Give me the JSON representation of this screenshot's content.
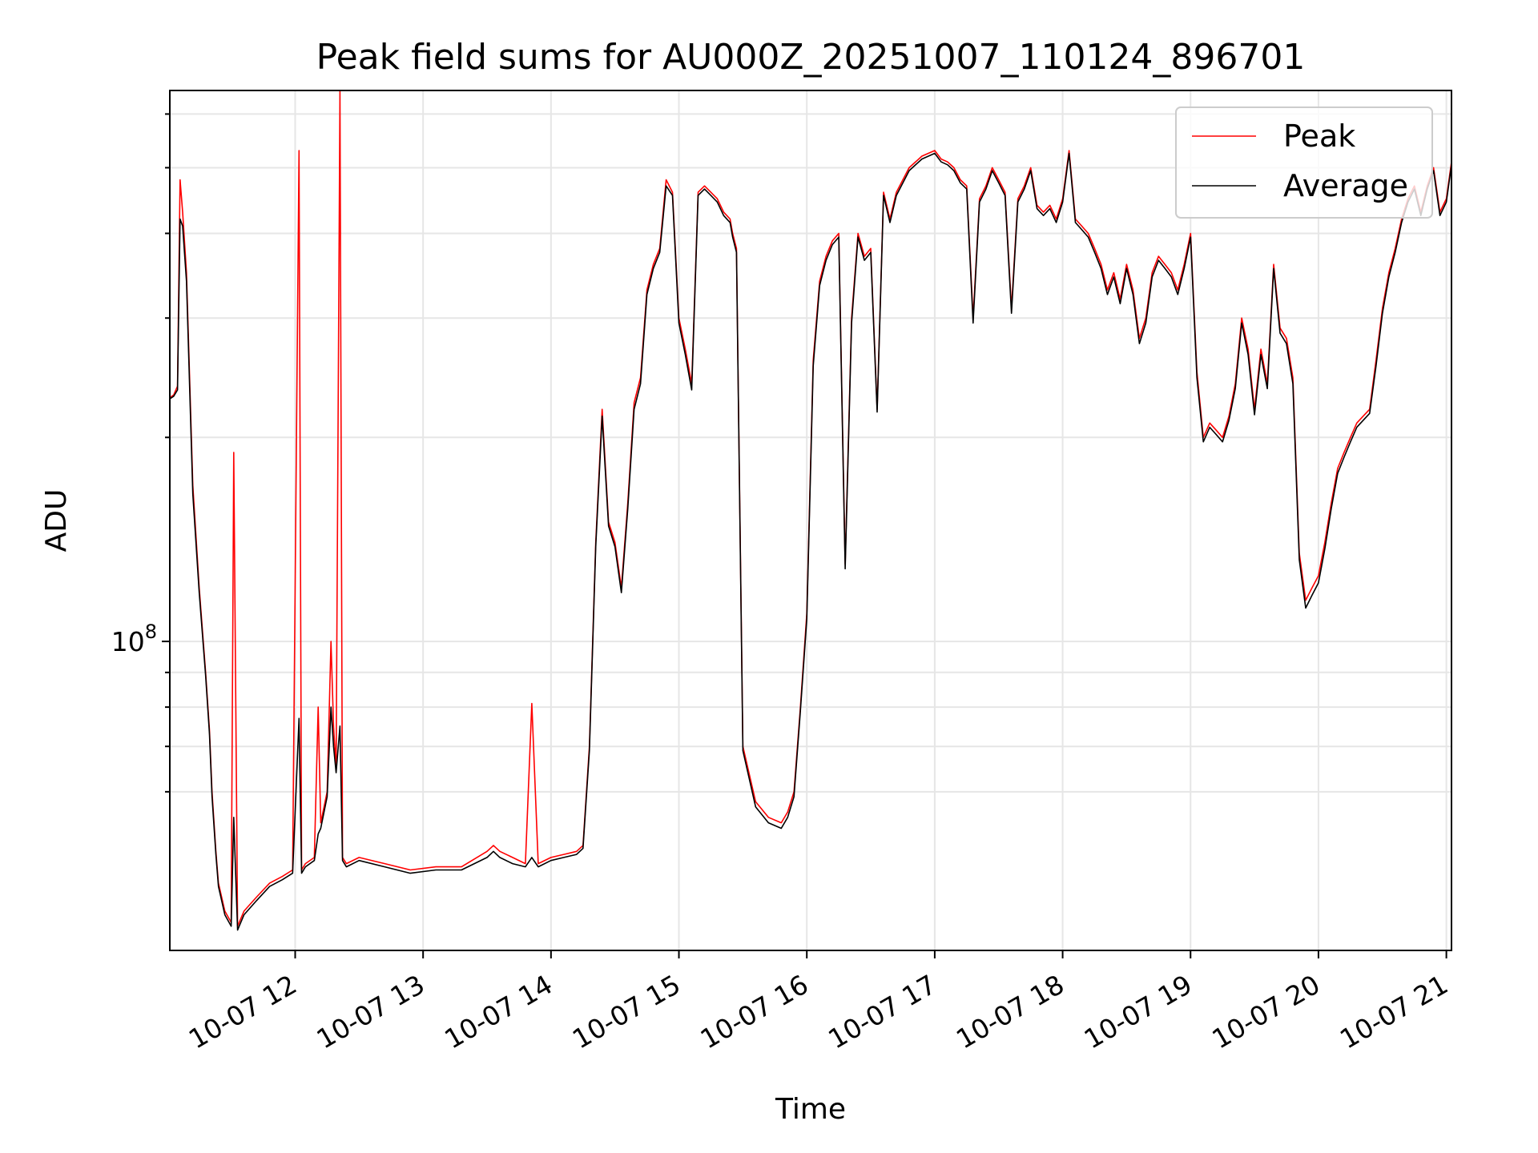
{
  "chart_data": {
    "type": "line",
    "title": "Peak field sums for AU000Z_20251007_110124_896701",
    "xlabel": "Time",
    "ylabel": "ADU",
    "xlim_hours": [
      11.02,
      21.04
    ],
    "ylim": [
      35000000,
      650000000
    ],
    "yscale": "log",
    "grid": true,
    "legend_position": "top-right",
    "x_major_ticks": [
      {
        "x": 12,
        "label": "10-07 12"
      },
      {
        "x": 13,
        "label": "10-07 13"
      },
      {
        "x": 14,
        "label": "10-07 14"
      },
      {
        "x": 15,
        "label": "10-07 15"
      },
      {
        "x": 16,
        "label": "10-07 16"
      },
      {
        "x": 17,
        "label": "10-07 17"
      },
      {
        "x": 18,
        "label": "10-07 18"
      },
      {
        "x": 19,
        "label": "10-07 19"
      },
      {
        "x": 20,
        "label": "10-07 20"
      },
      {
        "x": 21,
        "label": "10-07 21"
      }
    ],
    "y_major_ticks": [
      {
        "y": 100000000,
        "base": "10",
        "exp": "8"
      }
    ],
    "y_minor_ticks": [
      60000000,
      70000000,
      80000000,
      90000000,
      200000000,
      300000000,
      400000000,
      500000000,
      600000000
    ],
    "series": [
      {
        "name": "Peak",
        "color": "#ff0000",
        "x": [
          11.02,
          11.05,
          11.08,
          11.1,
          11.12,
          11.15,
          11.2,
          11.25,
          11.3,
          11.33,
          11.35,
          11.38,
          11.4,
          11.45,
          11.5,
          11.52,
          11.55,
          11.6,
          11.7,
          11.8,
          11.9,
          11.98,
          12.03,
          12.05,
          12.08,
          12.15,
          12.18,
          12.2,
          12.25,
          12.28,
          12.3,
          12.32,
          12.35,
          12.37,
          12.4,
          12.5,
          12.7,
          12.9,
          13.1,
          13.3,
          13.5,
          13.55,
          13.6,
          13.7,
          13.8,
          13.85,
          13.9,
          14.0,
          14.1,
          14.2,
          14.25,
          14.3,
          14.35,
          14.4,
          14.45,
          14.5,
          14.55,
          14.6,
          14.65,
          14.7,
          14.75,
          14.8,
          14.85,
          14.9,
          14.95,
          15.0,
          15.05,
          15.1,
          15.15,
          15.2,
          15.25,
          15.3,
          15.35,
          15.4,
          15.42,
          15.45,
          15.5,
          15.6,
          15.7,
          15.8,
          15.85,
          15.9,
          15.95,
          16.0,
          16.05,
          16.1,
          16.15,
          16.2,
          16.25,
          16.3,
          16.35,
          16.4,
          16.45,
          16.5,
          16.55,
          16.6,
          16.65,
          16.7,
          16.8,
          16.9,
          17.0,
          17.05,
          17.1,
          17.15,
          17.2,
          17.25,
          17.3,
          17.35,
          17.4,
          17.45,
          17.5,
          17.55,
          17.6,
          17.65,
          17.7,
          17.75,
          17.8,
          17.85,
          17.9,
          17.95,
          18.0,
          18.05,
          18.1,
          18.15,
          18.2,
          18.25,
          18.3,
          18.35,
          18.4,
          18.45,
          18.5,
          18.55,
          18.6,
          18.65,
          18.7,
          18.75,
          18.8,
          18.85,
          18.9,
          18.95,
          19.0,
          19.05,
          19.1,
          19.15,
          19.2,
          19.25,
          19.3,
          19.35,
          19.4,
          19.45,
          19.5,
          19.55,
          19.6,
          19.65,
          19.7,
          19.75,
          19.8,
          19.85,
          19.9,
          19.95,
          20.0,
          20.05,
          20.1,
          20.15,
          20.2,
          20.25,
          20.3,
          20.35,
          20.4,
          20.45,
          20.5,
          20.55,
          20.6,
          20.65,
          20.7,
          20.75,
          20.8,
          20.85,
          20.9,
          20.95,
          21.0,
          21.04
        ],
        "y": [
          229000000,
          231000000,
          238000000,
          480000000,
          430000000,
          350000000,
          170000000,
          120000000,
          90000000,
          74000000,
          60000000,
          49000000,
          44000000,
          40000000,
          38500000,
          190000000,
          38000000,
          40000000,
          42000000,
          44000000,
          45000000,
          46000000,
          530000000,
          46000000,
          47000000,
          48000000,
          80000000,
          54000000,
          60000000,
          100000000,
          75000000,
          65000000,
          650000000,
          48000000,
          47000000,
          48000000,
          47000000,
          46000000,
          46500000,
          46500000,
          49000000,
          50000000,
          49000000,
          48000000,
          47000000,
          81000000,
          47000000,
          48000000,
          48500000,
          49000000,
          50000000,
          70000000,
          140000000,
          220000000,
          150000000,
          140000000,
          120000000,
          160000000,
          225000000,
          245000000,
          330000000,
          360000000,
          380000000,
          480000000,
          460000000,
          300000000,
          270000000,
          240000000,
          460000000,
          470000000,
          460000000,
          450000000,
          430000000,
          420000000,
          400000000,
          380000000,
          70000000,
          58000000,
          55000000,
          54000000,
          56000000,
          60000000,
          80000000,
          110000000,
          260000000,
          340000000,
          370000000,
          390000000,
          400000000,
          130000000,
          300000000,
          400000000,
          370000000,
          380000000,
          220000000,
          460000000,
          420000000,
          460000000,
          500000000,
          520000000,
          530000000,
          515000000,
          510000000,
          500000000,
          480000000,
          470000000,
          300000000,
          450000000,
          470000000,
          500000000,
          480000000,
          460000000,
          310000000,
          450000000,
          470000000,
          500000000,
          440000000,
          430000000,
          440000000,
          420000000,
          450000000,
          530000000,
          420000000,
          410000000,
          400000000,
          380000000,
          360000000,
          330000000,
          350000000,
          320000000,
          360000000,
          330000000,
          280000000,
          300000000,
          350000000,
          370000000,
          360000000,
          350000000,
          330000000,
          360000000,
          400000000,
          250000000,
          200000000,
          210000000,
          205000000,
          200000000,
          215000000,
          240000000,
          300000000,
          270000000,
          220000000,
          270000000,
          240000000,
          360000000,
          290000000,
          280000000,
          245000000,
          135000000,
          115000000,
          120000000,
          125000000,
          140000000,
          160000000,
          180000000,
          190000000,
          200000000,
          210000000,
          215000000,
          220000000,
          260000000,
          310000000,
          350000000,
          380000000,
          420000000,
          450000000,
          470000000,
          430000000,
          470000000,
          500000000,
          430000000,
          450000000,
          510000000
        ]
      },
      {
        "name": "Average",
        "color": "#000000",
        "x": [
          11.02,
          11.05,
          11.08,
          11.1,
          11.12,
          11.15,
          11.2,
          11.25,
          11.3,
          11.33,
          11.35,
          11.38,
          11.4,
          11.45,
          11.5,
          11.52,
          11.55,
          11.6,
          11.7,
          11.8,
          11.9,
          11.98,
          12.03,
          12.05,
          12.08,
          12.15,
          12.18,
          12.2,
          12.25,
          12.28,
          12.3,
          12.32,
          12.35,
          12.37,
          12.4,
          12.5,
          12.7,
          12.9,
          13.1,
          13.3,
          13.5,
          13.55,
          13.6,
          13.7,
          13.8,
          13.85,
          13.9,
          14.0,
          14.1,
          14.2,
          14.25,
          14.3,
          14.35,
          14.4,
          14.45,
          14.5,
          14.55,
          14.6,
          14.65,
          14.7,
          14.75,
          14.8,
          14.85,
          14.9,
          14.95,
          15.0,
          15.05,
          15.1,
          15.15,
          15.2,
          15.25,
          15.3,
          15.35,
          15.4,
          15.42,
          15.45,
          15.5,
          15.6,
          15.7,
          15.8,
          15.85,
          15.9,
          15.95,
          16.0,
          16.05,
          16.1,
          16.15,
          16.2,
          16.25,
          16.3,
          16.35,
          16.4,
          16.45,
          16.5,
          16.55,
          16.6,
          16.65,
          16.7,
          16.8,
          16.9,
          17.0,
          17.05,
          17.1,
          17.15,
          17.2,
          17.25,
          17.3,
          17.35,
          17.4,
          17.45,
          17.5,
          17.55,
          17.6,
          17.65,
          17.7,
          17.75,
          17.8,
          17.85,
          17.9,
          17.95,
          18.0,
          18.05,
          18.1,
          18.15,
          18.2,
          18.25,
          18.3,
          18.35,
          18.4,
          18.45,
          18.5,
          18.55,
          18.6,
          18.65,
          18.7,
          18.75,
          18.8,
          18.85,
          18.9,
          18.95,
          19.0,
          19.05,
          19.1,
          19.15,
          19.2,
          19.25,
          19.3,
          19.35,
          19.4,
          19.45,
          19.5,
          19.55,
          19.6,
          19.65,
          19.7,
          19.75,
          19.8,
          19.85,
          19.9,
          19.95,
          20.0,
          20.05,
          20.1,
          20.15,
          20.2,
          20.25,
          20.3,
          20.35,
          20.4,
          20.45,
          20.5,
          20.55,
          20.6,
          20.65,
          20.7,
          20.75,
          20.8,
          20.85,
          20.9,
          20.95,
          21.0,
          21.04
        ],
        "y": [
          228000000,
          230000000,
          235000000,
          420000000,
          410000000,
          340000000,
          165000000,
          118000000,
          89000000,
          73000000,
          59000000,
          48500000,
          43500000,
          39500000,
          38000000,
          55000000,
          37500000,
          39500000,
          41500000,
          43500000,
          44500000,
          45500000,
          77000000,
          45500000,
          46500000,
          47500000,
          52000000,
          53000000,
          59000000,
          80000000,
          70000000,
          64000000,
          75000000,
          47500000,
          46500000,
          47500000,
          46500000,
          45500000,
          46000000,
          46000000,
          48000000,
          49000000,
          48000000,
          47000000,
          46500000,
          48000000,
          46500000,
          47500000,
          48000000,
          48500000,
          49500000,
          69000000,
          138000000,
          215000000,
          148000000,
          138000000,
          118000000,
          157000000,
          220000000,
          240000000,
          325000000,
          355000000,
          375000000,
          470000000,
          455000000,
          295000000,
          265000000,
          235000000,
          455000000,
          465000000,
          455000000,
          445000000,
          425000000,
          415000000,
          395000000,
          375000000,
          69000000,
          57000000,
          54000000,
          53000000,
          55000000,
          59000000,
          79000000,
          108000000,
          255000000,
          335000000,
          365000000,
          385000000,
          395000000,
          128000000,
          295000000,
          395000000,
          365000000,
          375000000,
          218000000,
          455000000,
          415000000,
          455000000,
          495000000,
          515000000,
          525000000,
          510000000,
          505000000,
          495000000,
          475000000,
          465000000,
          295000000,
          445000000,
          465000000,
          495000000,
          475000000,
          455000000,
          305000000,
          445000000,
          465000000,
          495000000,
          435000000,
          425000000,
          435000000,
          415000000,
          445000000,
          525000000,
          415000000,
          405000000,
          395000000,
          375000000,
          355000000,
          325000000,
          345000000,
          315000000,
          355000000,
          325000000,
          275000000,
          295000000,
          345000000,
          365000000,
          355000000,
          345000000,
          325000000,
          355000000,
          395000000,
          245000000,
          197000000,
          207000000,
          202000000,
          197000000,
          212000000,
          236000000,
          295000000,
          265000000,
          216000000,
          265000000,
          236000000,
          355000000,
          285000000,
          275000000,
          240000000,
          132000000,
          112000000,
          117000000,
          122000000,
          137000000,
          157000000,
          177000000,
          187000000,
          197000000,
          207000000,
          212000000,
          217000000,
          255000000,
          305000000,
          345000000,
          375000000,
          415000000,
          445000000,
          465000000,
          425000000,
          465000000,
          495000000,
          425000000,
          445000000,
          505000000
        ]
      }
    ]
  }
}
